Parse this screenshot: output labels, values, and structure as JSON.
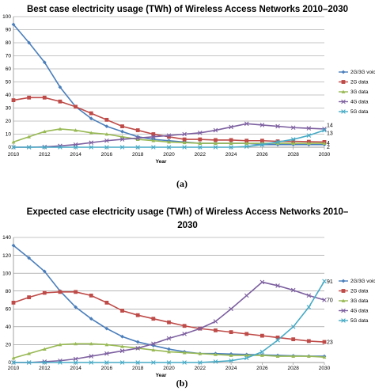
{
  "chart_data": [
    {
      "type": "line",
      "panel_label": "(a)",
      "title": "Best case electricity usage (TWh) of Wireless Access Networks 2010–2030",
      "title_lines": [
        "Best case electricity usage (TWh) of Wireless Access Networks 2010–2030"
      ],
      "xlabel": "Year",
      "ylabel": "",
      "xlim": [
        2010,
        2030
      ],
      "ylim": [
        0,
        100
      ],
      "x_ticks": [
        2010,
        2012,
        2014,
        2016,
        2018,
        2020,
        2022,
        2024,
        2026,
        2028,
        2030
      ],
      "y_ticks": [
        0,
        10,
        20,
        30,
        40,
        50,
        60,
        70,
        80,
        90,
        100
      ],
      "grid": true,
      "legend_position": "right",
      "x": [
        2010,
        2011,
        2012,
        2013,
        2014,
        2015,
        2016,
        2017,
        2018,
        2019,
        2020,
        2021,
        2022,
        2023,
        2024,
        2025,
        2026,
        2027,
        2028,
        2029,
        2030
      ],
      "series": [
        {
          "name": "2G/3G voice",
          "color": "#4a7ebb",
          "marker": "diamond",
          "values": [
            94,
            80,
            65,
            46,
            31,
            22,
            16,
            12,
            8,
            6,
            5,
            4,
            3,
            3,
            3,
            3,
            2,
            2,
            2,
            2,
            2
          ]
        },
        {
          "name": "2G data",
          "color": "#be4b48",
          "marker": "square",
          "values": [
            36,
            38,
            38,
            35,
            31,
            26,
            21,
            16,
            13,
            10,
            8,
            6,
            6,
            5.5,
            5.5,
            5,
            5,
            4.5,
            4.5,
            4.2,
            4
          ]
        },
        {
          "name": "3G data",
          "color": "#98b954",
          "marker": "triangle",
          "values": [
            4,
            8,
            12,
            14,
            13,
            11,
            10,
            8,
            6,
            5,
            4,
            3.5,
            3,
            3,
            3,
            3,
            3,
            3,
            3,
            3,
            3
          ]
        },
        {
          "name": "4G data",
          "color": "#7d60a0",
          "marker": "x",
          "values": [
            0,
            0,
            0.3,
            1,
            2,
            3.5,
            5,
            6,
            7,
            8,
            9,
            10,
            11,
            13,
            15.5,
            18,
            17,
            16,
            15,
            14.5,
            14
          ]
        },
        {
          "name": "5G data",
          "color": "#46aac5",
          "marker": "x",
          "values": [
            0,
            0,
            0,
            0,
            0,
            0,
            0,
            0,
            0,
            0,
            0,
            0,
            0,
            0,
            0,
            0.5,
            2,
            4,
            6,
            9,
            13
          ]
        }
      ],
      "end_labels": [
        {
          "text": "14",
          "value": 14
        },
        {
          "text": "13",
          "value": 13
        },
        {
          "text": "4",
          "value": 4
        },
        {
          "text": "2",
          "value": 2
        }
      ]
    },
    {
      "type": "line",
      "panel_label": "(b)",
      "title": "Expected case electricity usage (TWh) of Wireless Access Networks 2010–2030",
      "title_lines": [
        "Expected case electricity usage (TWh) of Wireless Access Networks 2010–",
        "2030"
      ],
      "xlabel": "Year",
      "ylabel": "",
      "xlim": [
        2010,
        2030
      ],
      "ylim": [
        0,
        140
      ],
      "x_ticks": [
        2010,
        2012,
        2014,
        2016,
        2018,
        2020,
        2022,
        2024,
        2026,
        2028,
        2030
      ],
      "y_ticks": [
        0,
        20,
        40,
        60,
        80,
        100,
        120,
        140
      ],
      "grid": true,
      "legend_position": "right",
      "x": [
        2010,
        2011,
        2012,
        2013,
        2014,
        2015,
        2016,
        2017,
        2018,
        2019,
        2020,
        2021,
        2022,
        2023,
        2024,
        2025,
        2026,
        2027,
        2028,
        2029,
        2030
      ],
      "series": [
        {
          "name": "2G/3G voice",
          "color": "#4a7ebb",
          "marker": "diamond",
          "values": [
            131,
            117,
            102,
            80,
            62,
            49,
            38,
            29,
            23,
            19,
            15,
            12,
            10,
            10,
            9.5,
            9,
            8.5,
            8,
            7.5,
            7.2,
            7
          ]
        },
        {
          "name": "2G data",
          "color": "#be4b48",
          "marker": "square",
          "values": [
            67,
            73,
            78,
            79,
            79,
            75,
            67,
            58,
            53,
            49,
            45,
            41,
            38,
            36,
            34,
            32,
            30,
            28,
            26,
            24,
            23
          ]
        },
        {
          "name": "3G data",
          "color": "#98b954",
          "marker": "triangle",
          "values": [
            5,
            10,
            15,
            20,
            21,
            21,
            20,
            18,
            16,
            14,
            12,
            11,
            10,
            9,
            8,
            8,
            8,
            7,
            7,
            7,
            6
          ]
        },
        {
          "name": "4G data",
          "color": "#7d60a0",
          "marker": "x",
          "values": [
            0,
            0,
            1,
            2,
            4,
            7,
            10,
            13,
            16,
            21,
            27,
            32,
            38,
            46,
            60,
            75,
            90,
            86,
            81,
            75,
            70
          ]
        },
        {
          "name": "5G data",
          "color": "#46aac5",
          "marker": "x",
          "values": [
            0,
            0,
            0,
            0,
            0,
            0,
            0,
            0,
            0,
            0,
            0,
            0,
            0,
            1,
            2,
            5,
            12,
            25,
            40,
            62,
            91
          ]
        }
      ],
      "end_labels": [
        {
          "text": "91",
          "value": 91
        },
        {
          "text": "70",
          "value": 70
        },
        {
          "text": "23",
          "value": 23
        }
      ]
    }
  ]
}
